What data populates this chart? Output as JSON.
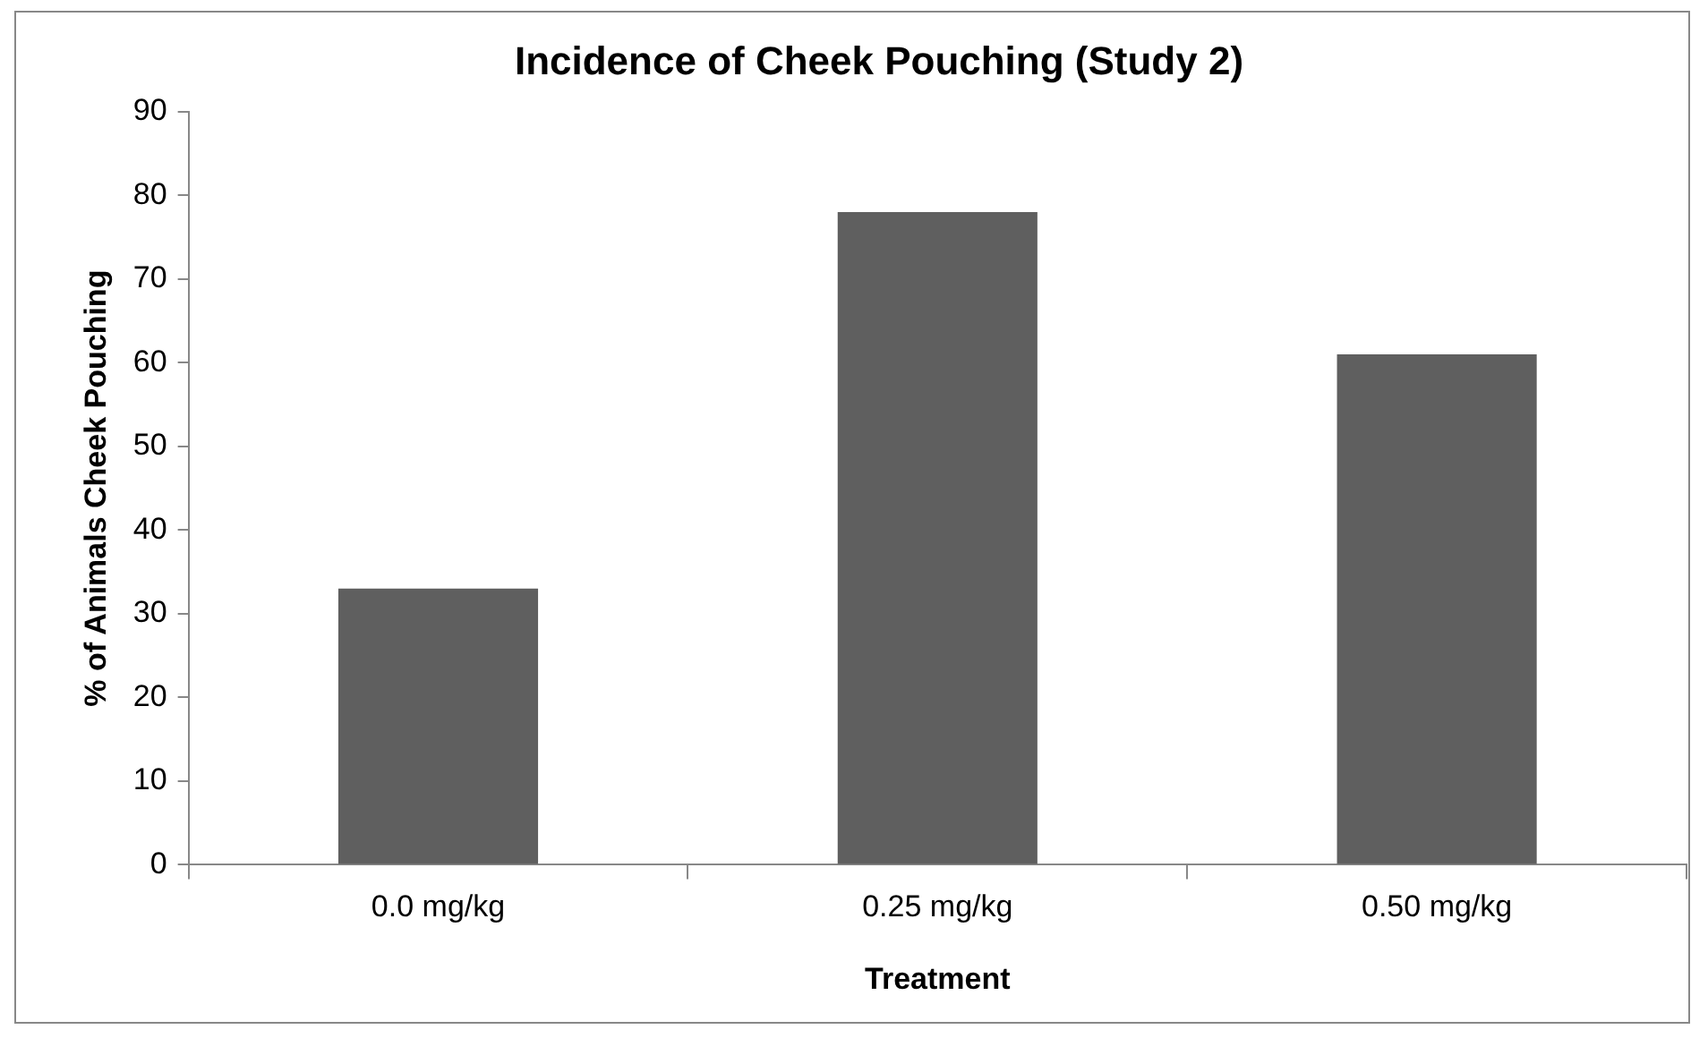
{
  "chart_data": {
    "type": "bar",
    "title": "Incidence of Cheek Pouching (Study 2)",
    "xlabel": "Treatment",
    "ylabel": "% of Animals Cheek Pouching",
    "categories": [
      "0.0 mg/kg",
      "0.25 mg/kg",
      "0.50 mg/kg"
    ],
    "values": [
      33,
      78,
      61
    ],
    "color": "#5f5f5f",
    "ylim": [
      0,
      90
    ],
    "yticks": [
      0,
      10,
      20,
      30,
      40,
      50,
      60,
      70,
      80,
      90
    ],
    "grid": false,
    "legend": false
  }
}
